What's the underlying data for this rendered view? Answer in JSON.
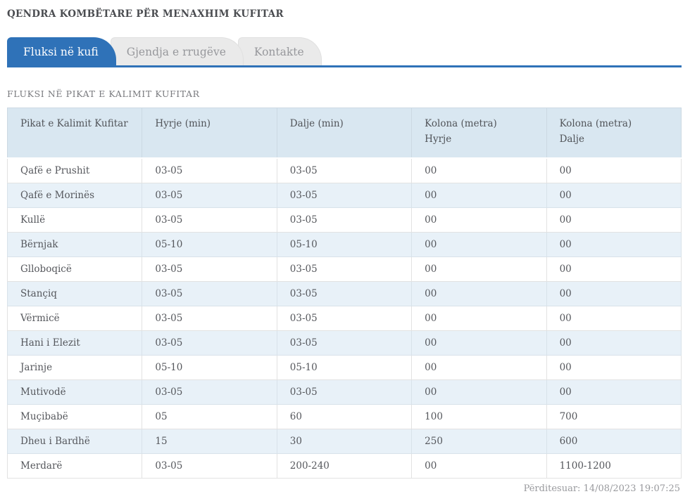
{
  "header": {
    "title": "QENDRA KOMBËTARE PËR MENAXHIM KUFITAR"
  },
  "tabs": [
    {
      "label": "Fluksi në kufi",
      "active": true
    },
    {
      "label": "Gjendja e rrugëve",
      "active": false
    },
    {
      "label": "Kontakte",
      "active": false
    }
  ],
  "section": {
    "heading": "FLUKSI NË PIKAT E KALIMIT KUFITAR"
  },
  "table": {
    "columns": [
      {
        "line1": "Pikat e Kalimit Kufitar",
        "line2": ""
      },
      {
        "line1": "Hyrje (min)",
        "line2": ""
      },
      {
        "line1": "Dalje (min)",
        "line2": ""
      },
      {
        "line1": "Kolona (metra)",
        "line2": "Hyrje"
      },
      {
        "line1": "Kolona (metra)",
        "line2": "Dalje"
      }
    ],
    "rows": [
      [
        "Qafë e Prushit",
        "03-05",
        "03-05",
        "00",
        "00"
      ],
      [
        "Qafë e Morinës",
        "03-05",
        "03-05",
        "00",
        "00"
      ],
      [
        "Kullë",
        "03-05",
        "03-05",
        "00",
        "00"
      ],
      [
        "Bërnjak",
        "05-10",
        "05-10",
        "00",
        "00"
      ],
      [
        "Glloboqicë",
        "03-05",
        "03-05",
        "00",
        "00"
      ],
      [
        "Stançiq",
        "03-05",
        "03-05",
        "00",
        "00"
      ],
      [
        "Vërmicë",
        "03-05",
        "03-05",
        "00",
        "00"
      ],
      [
        "Hani i Elezit",
        "03-05",
        "03-05",
        "00",
        "00"
      ],
      [
        "Jarinje",
        "05-10",
        "05-10",
        "00",
        "00"
      ],
      [
        "Mutivodë",
        "03-05",
        "03-05",
        "00",
        "00"
      ],
      [
        "Muçibabë",
        "05",
        "60",
        "100",
        "700"
      ],
      [
        "Dheu i Bardhë",
        "15",
        "30",
        "250",
        "600"
      ],
      [
        "Merdarë",
        "03-05",
        "200-240",
        "00",
        "1100-1200"
      ]
    ]
  },
  "footer": {
    "updated": "Përditesuar: 14/08/2023 19:07:25"
  },
  "colors": {
    "accent": "#2f72b8",
    "table_header_bg": "#d9e7f1",
    "row_alt_bg": "#e8f1f8"
  }
}
